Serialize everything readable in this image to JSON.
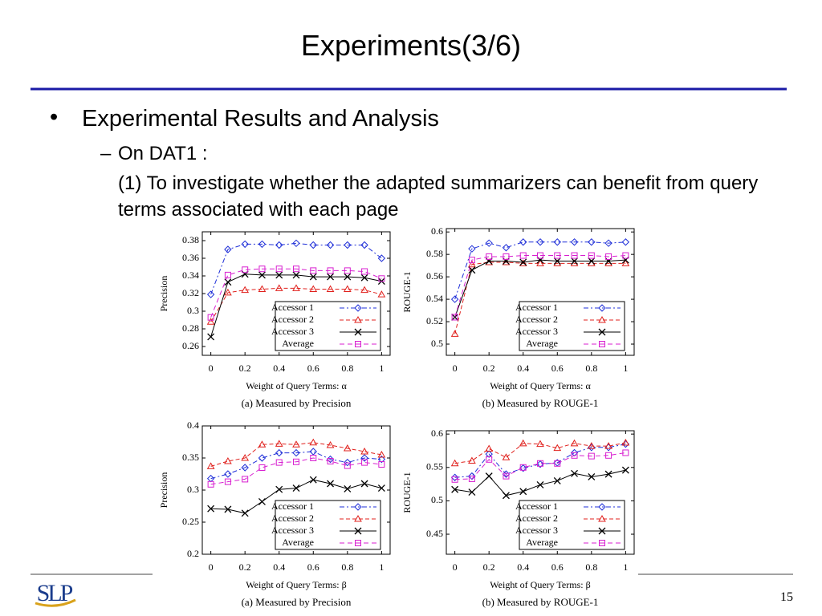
{
  "slide": {
    "title": "Experiments(3/6)",
    "bullet": "Experimental Results and Analysis",
    "sub_label": "On DAT1 :",
    "sub_text": "(1) To investigate whether the adapted summarizers can benefit from query terms associated with each page",
    "page_number": "15",
    "logo": "SLP"
  },
  "chart_data": [
    {
      "type": "line",
      "y_label": "Precision",
      "x_label": "Weight of Query Terms: α",
      "caption": "(a) Measured by Precision",
      "x": [
        0,
        0.1,
        0.2,
        0.3,
        0.4,
        0.5,
        0.6,
        0.7,
        0.8,
        0.9,
        1
      ],
      "xlim": [
        -0.05,
        1.05
      ],
      "xticks": [
        0,
        0.2,
        0.4,
        0.6,
        0.8,
        1
      ],
      "ylim": [
        0.25,
        0.39
      ],
      "yticks": [
        0.26,
        0.28,
        0.3,
        0.32,
        0.34,
        0.36,
        0.38
      ],
      "legend": "lower right",
      "series": [
        {
          "name": "Accessor 1",
          "color": "#1f2fd8",
          "values": [
            0.319,
            0.37,
            0.376,
            0.376,
            0.375,
            0.377,
            0.375,
            0.375,
            0.375,
            0.375,
            0.36
          ]
        },
        {
          "name": "Accessor 2",
          "color": "#e0201c",
          "values": [
            0.288,
            0.321,
            0.324,
            0.325,
            0.326,
            0.326,
            0.325,
            0.325,
            0.325,
            0.324,
            0.319
          ]
        },
        {
          "name": "Accessor 3",
          "color": "#000000",
          "values": [
            0.271,
            0.333,
            0.342,
            0.341,
            0.341,
            0.341,
            0.339,
            0.339,
            0.339,
            0.338,
            0.334
          ]
        },
        {
          "name": "Average",
          "color": "#d81fd0",
          "values": [
            0.293,
            0.341,
            0.347,
            0.348,
            0.348,
            0.348,
            0.346,
            0.346,
            0.346,
            0.345,
            0.337
          ]
        }
      ]
    },
    {
      "type": "line",
      "y_label": "ROUGE-1",
      "x_label": "Weight of Query Terms: α",
      "caption": "(b) Measured by ROUGE-1",
      "x": [
        0,
        0.1,
        0.2,
        0.3,
        0.4,
        0.5,
        0.6,
        0.7,
        0.8,
        0.9,
        1
      ],
      "xlim": [
        -0.05,
        1.05
      ],
      "xticks": [
        0,
        0.2,
        0.4,
        0.6,
        0.8,
        1
      ],
      "ylim": [
        0.49,
        0.603
      ],
      "yticks": [
        0.5,
        0.52,
        0.54,
        0.56,
        0.58,
        0.6
      ],
      "legend": "lower right",
      "series": [
        {
          "name": "Accessor 1",
          "color": "#1f2fd8",
          "values": [
            0.54,
            0.585,
            0.59,
            0.586,
            0.591,
            0.591,
            0.591,
            0.591,
            0.591,
            0.59,
            0.591
          ]
        },
        {
          "name": "Accessor 2",
          "color": "#e0201c",
          "values": [
            0.509,
            0.571,
            0.573,
            0.573,
            0.572,
            0.572,
            0.572,
            0.572,
            0.572,
            0.572,
            0.572
          ]
        },
        {
          "name": "Accessor 3",
          "color": "#000000",
          "values": [
            0.524,
            0.566,
            0.574,
            0.574,
            0.573,
            0.575,
            0.574,
            0.574,
            0.574,
            0.574,
            0.575
          ]
        },
        {
          "name": "Average",
          "color": "#d81fd0",
          "values": [
            0.524,
            0.575,
            0.578,
            0.578,
            0.579,
            0.579,
            0.579,
            0.579,
            0.579,
            0.578,
            0.579
          ]
        }
      ]
    },
    {
      "type": "line",
      "y_label": "Precision",
      "x_label": "Weight of Query Terms: β",
      "caption": "(a) Measured by Precision",
      "x": [
        0,
        0.1,
        0.2,
        0.3,
        0.4,
        0.5,
        0.6,
        0.7,
        0.8,
        0.9,
        1
      ],
      "xlim": [
        -0.05,
        1.05
      ],
      "xticks": [
        0,
        0.2,
        0.4,
        0.6,
        0.8,
        1
      ],
      "ylim": [
        0.2,
        0.4
      ],
      "yticks": [
        0.2,
        0.25,
        0.3,
        0.35,
        0.4
      ],
      "legend": "lower right",
      "series": [
        {
          "name": "Accessor 1",
          "color": "#1f2fd8",
          "values": [
            0.318,
            0.325,
            0.335,
            0.35,
            0.358,
            0.358,
            0.36,
            0.348,
            0.343,
            0.35,
            0.348
          ]
        },
        {
          "name": "Accessor 2",
          "color": "#e0201c",
          "values": [
            0.337,
            0.345,
            0.35,
            0.371,
            0.372,
            0.371,
            0.374,
            0.37,
            0.365,
            0.36,
            0.355
          ]
        },
        {
          "name": "Accessor 3",
          "color": "#000000",
          "values": [
            0.271,
            0.27,
            0.264,
            0.282,
            0.301,
            0.303,
            0.316,
            0.31,
            0.302,
            0.31,
            0.303
          ]
        },
        {
          "name": "Average",
          "color": "#d81fd0",
          "values": [
            0.309,
            0.313,
            0.317,
            0.335,
            0.343,
            0.344,
            0.35,
            0.345,
            0.338,
            0.343,
            0.34
          ]
        }
      ]
    },
    {
      "type": "line",
      "y_label": "ROUGE-1",
      "x_label": "Weight of Query Terms: β",
      "caption": "(b) Measured by ROUGE-1",
      "x": [
        0,
        0.1,
        0.2,
        0.3,
        0.4,
        0.5,
        0.6,
        0.7,
        0.8,
        0.9,
        1
      ],
      "xlim": [
        -0.05,
        1.05
      ],
      "xticks": [
        0,
        0.2,
        0.4,
        0.6,
        0.8,
        1
      ],
      "ylim": [
        0.42,
        0.605
      ],
      "yticks": [
        0.45,
        0.5,
        0.55,
        0.6
      ],
      "legend": "lower right",
      "series": [
        {
          "name": "Accessor 1",
          "color": "#1f2fd8",
          "values": [
            0.535,
            0.537,
            0.57,
            0.54,
            0.549,
            0.555,
            0.557,
            0.572,
            0.58,
            0.58,
            0.585
          ]
        },
        {
          "name": "Accessor 2",
          "color": "#e0201c",
          "values": [
            0.556,
            0.56,
            0.578,
            0.565,
            0.586,
            0.585,
            0.579,
            0.586,
            0.582,
            0.582,
            0.587
          ]
        },
        {
          "name": "Accessor 3",
          "color": "#000000",
          "values": [
            0.517,
            0.513,
            0.537,
            0.508,
            0.514,
            0.524,
            0.53,
            0.541,
            0.536,
            0.54,
            0.546
          ]
        },
        {
          "name": "Average",
          "color": "#d81fd0",
          "values": [
            0.532,
            0.533,
            0.562,
            0.537,
            0.55,
            0.556,
            0.556,
            0.568,
            0.567,
            0.568,
            0.572
          ]
        }
      ]
    }
  ]
}
